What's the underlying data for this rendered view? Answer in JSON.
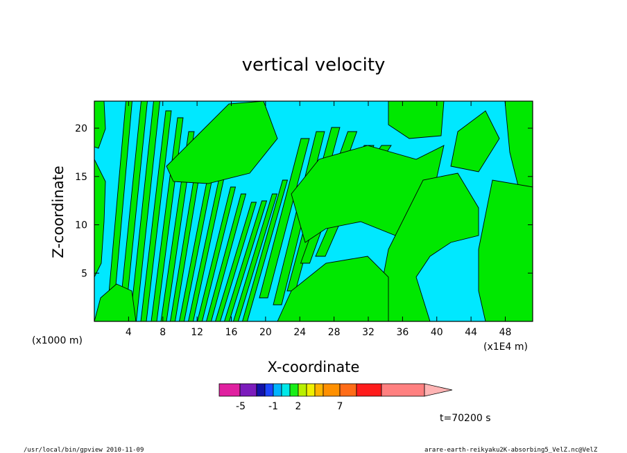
{
  "chart_data": {
    "type": "heatmap",
    "title": "vertical velocity",
    "xlabel": "X-coordinate",
    "ylabel": "Z-coordinate",
    "x_unit_left": "(x1000 m)",
    "x_unit_right": "(x1E4 m)",
    "x_ticks": [
      "4",
      "8",
      "12",
      "16",
      "20",
      "24",
      "28",
      "32",
      "36",
      "40",
      "44",
      "48"
    ],
    "y_ticks": [
      "5",
      "10",
      "15",
      "20"
    ],
    "xlim": [
      0,
      51.2
    ],
    "ylim": [
      0,
      22.8
    ],
    "colorbar": {
      "colors": [
        "#e020a0",
        "#7c1cbc",
        "#1212a8",
        "#1c46ff",
        "#00b4ff",
        "#00e8e8",
        "#18ee18",
        "#b8f000",
        "#f0f000",
        "#ffb400",
        "#ff9000",
        "#ff6c18",
        "#ff1c1c",
        "#ff8080",
        "#ffb4b4"
      ],
      "tick_labels": [
        "-5",
        "-1",
        "2",
        "7"
      ]
    },
    "shown_levels": {
      "negative_color": "#00e8ff",
      "positive_color": "#00e800"
    },
    "time_label": "t=70200 s"
  },
  "footer": {
    "left": "/usr/local/bin/gpview  2010-11-09",
    "right": "arare-earth-reikyaku2K-absorbing5_VelZ.nc@VelZ"
  }
}
